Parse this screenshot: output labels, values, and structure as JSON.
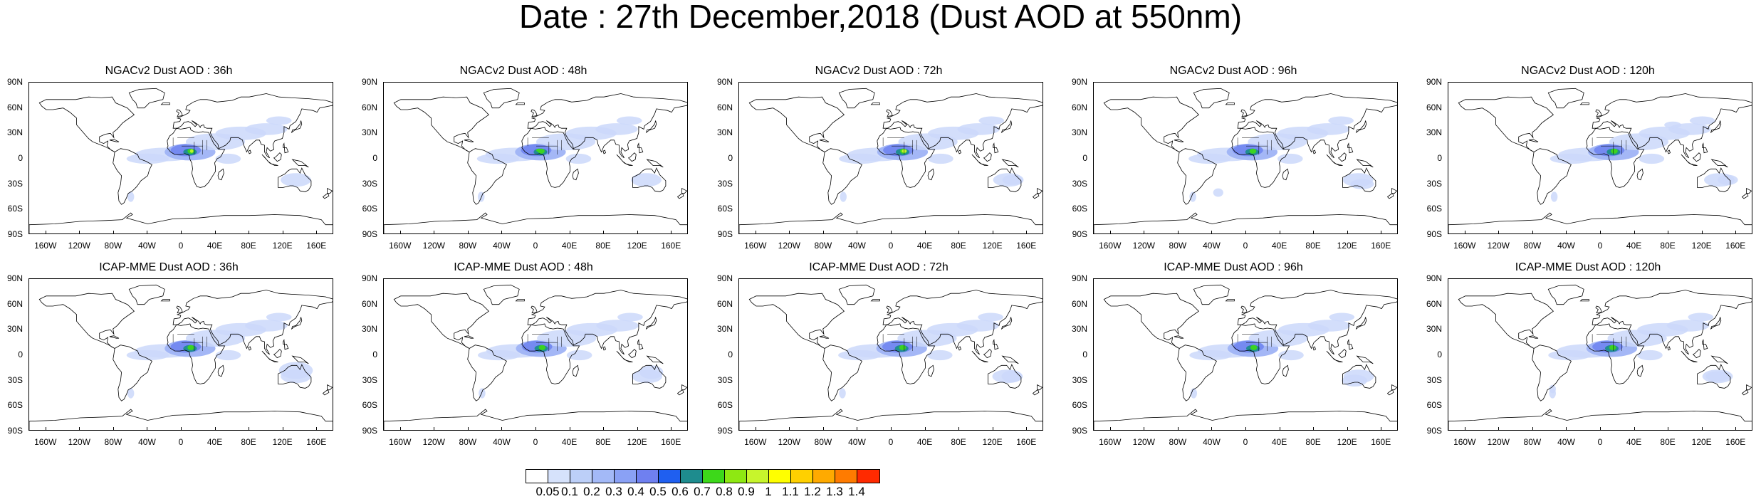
{
  "title": "Date : 27th December,2018 (Dust AOD at 550nm)",
  "panels": [
    {
      "title": "NGACv2 Dust AOD : 36h",
      "model": "NGACv2",
      "lead": "36h"
    },
    {
      "title": "NGACv2 Dust AOD : 48h",
      "model": "NGACv2",
      "lead": "48h"
    },
    {
      "title": "NGACv2 Dust AOD : 72h",
      "model": "NGACv2",
      "lead": "72h"
    },
    {
      "title": "NGACv2 Dust AOD : 96h",
      "model": "NGACv2",
      "lead": "96h"
    },
    {
      "title": "NGACv2 Dust AOD : 120h",
      "model": "NGACv2",
      "lead": "120h"
    },
    {
      "title": "ICAP-MME Dust AOD : 36h",
      "model": "ICAP-MME",
      "lead": "36h"
    },
    {
      "title": "ICAP-MME Dust AOD : 48h",
      "model": "ICAP-MME",
      "lead": "48h"
    },
    {
      "title": "ICAP-MME Dust AOD : 72h",
      "model": "ICAP-MME",
      "lead": "72h"
    },
    {
      "title": "ICAP-MME Dust AOD : 96h",
      "model": "ICAP-MME",
      "lead": "96h"
    },
    {
      "title": "ICAP-MME Dust AOD : 120h",
      "model": "ICAP-MME",
      "lead": "120h"
    }
  ],
  "lat_labels": [
    "90N",
    "60N",
    "30N",
    "0",
    "30S",
    "60S",
    "90S"
  ],
  "lon_labels": [
    "160W",
    "120W",
    "80W",
    "40W",
    "0",
    "40E",
    "80E",
    "120E",
    "160E"
  ],
  "colorbar": {
    "labels": [
      "0.05",
      "0.1",
      "0.2",
      "0.3",
      "0.4",
      "0.5",
      "0.6",
      "0.7",
      "0.8",
      "0.9",
      "1",
      "1.1",
      "1.2",
      "1.3",
      "1.4"
    ],
    "colors": [
      "#ffffff",
      "#d6e2fb",
      "#bccff8",
      "#a3b9f7",
      "#8aa1f5",
      "#6f80f0",
      "#1f5ff0",
      "#1e8c8e",
      "#3dd81a",
      "#8ee812",
      "#c7f52c",
      "#ffff00",
      "#ffd000",
      "#ffaa00",
      "#ff7b00",
      "#ff2a00"
    ]
  },
  "dust_colors": {
    "light": "#cbd8fa",
    "medium": "#9fb3f6",
    "dark": "#7388f0",
    "teal": "#1e8c8e",
    "green": "#3dd81a",
    "yellow_green": "#c7f52c"
  }
}
